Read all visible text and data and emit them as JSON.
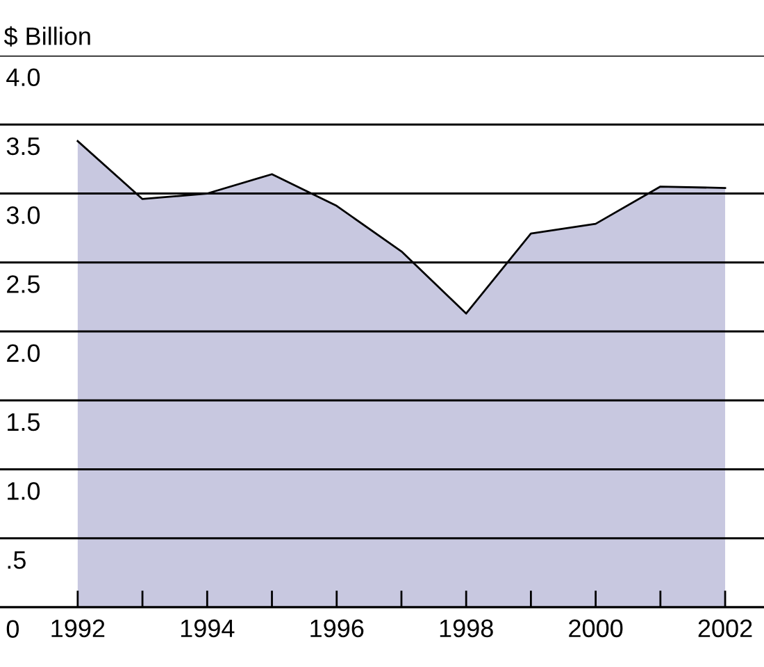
{
  "chart_data": {
    "type": "area",
    "ylabel": "$ Billion",
    "x": [
      1992,
      1993,
      1994,
      1995,
      1996,
      1997,
      1998,
      1999,
      2000,
      2001,
      2002
    ],
    "series": [
      {
        "color": "#c8c8e0",
        "values": [
          3.38,
          2.96,
          3.0,
          3.14,
          2.91,
          2.58,
          2.13,
          2.71,
          2.78,
          3.05,
          3.04
        ]
      }
    ],
    "xlim": [
      1990.8,
      2002.6
    ],
    "xticks": [
      1992,
      {
        "value": 1993,
        "label": null
      },
      1994,
      {
        "value": 1995,
        "label": null
      },
      1996,
      {
        "value": 1997,
        "label": null
      },
      1998,
      {
        "value": 1999,
        "label": null
      },
      2000,
      {
        "value": 2001,
        "label": null
      },
      2002
    ],
    "ylim": [
      0,
      4.0
    ],
    "yticks": [
      {
        "value": 0,
        "label": "0"
      },
      {
        "value": 0.5,
        "label": ".5"
      },
      {
        "value": 1.0,
        "label": "1.0"
      },
      {
        "value": 1.5,
        "label": "1.5"
      },
      {
        "value": 2.0,
        "label": "2.0"
      },
      {
        "value": 2.5,
        "label": "2.5"
      },
      {
        "value": 3.0,
        "label": "3.0"
      },
      {
        "value": 3.5,
        "label": "3.5"
      },
      {
        "value": 4.0,
        "label": "4.0"
      }
    ],
    "grid": "y"
  }
}
